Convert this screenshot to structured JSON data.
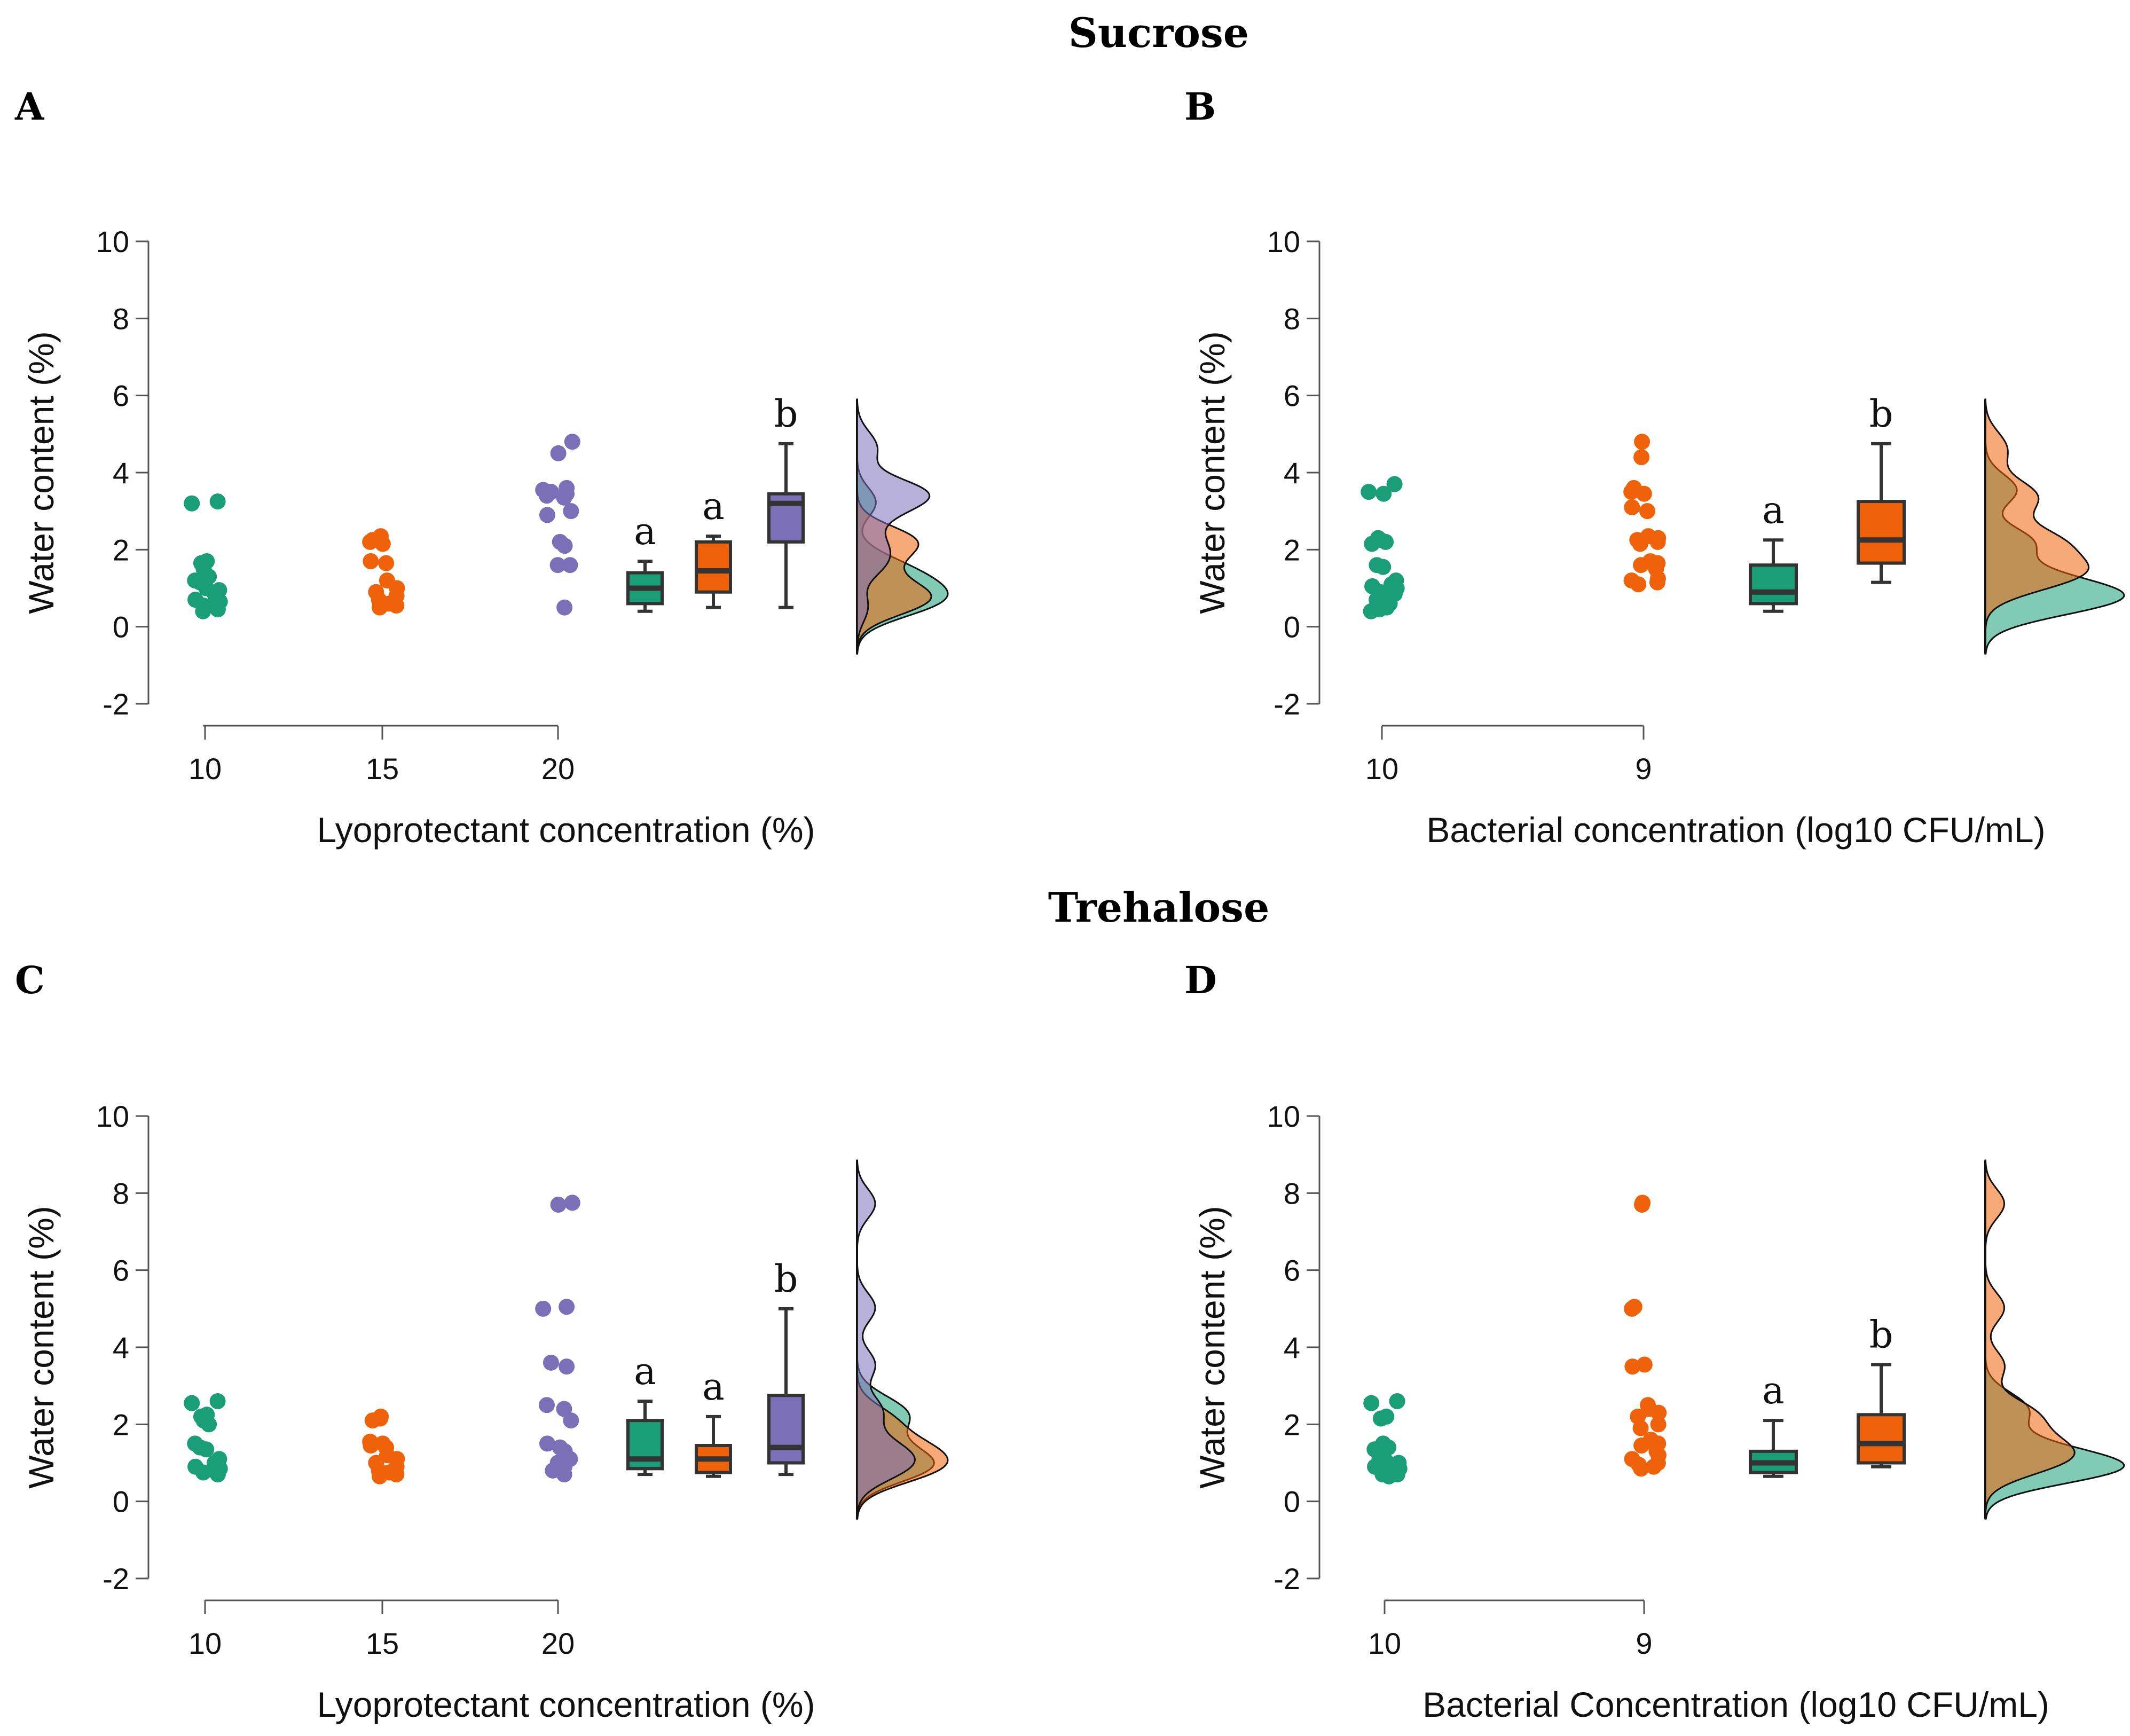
{
  "chart_data": [
    {
      "panel": "A",
      "section_title": "Sucrose",
      "type": "raincloud",
      "xlabel": "Lyoprotectant concentration (%)",
      "ylabel": "Water content (%)",
      "ylim": [
        -2,
        10
      ],
      "yticks": [
        "-2",
        "0",
        "2",
        "4",
        "6",
        "8",
        "10"
      ],
      "groups": [
        {
          "label": "10",
          "color": "#1a9e77",
          "points": [
            3.25,
            3.2,
            1.7,
            1.65,
            1.5,
            1.3,
            1.2,
            1.15,
            1.0,
            0.95,
            0.85,
            0.7,
            0.65,
            0.6,
            0.55,
            0.45,
            0.4
          ],
          "box": {
            "min": 0.4,
            "q1": 0.6,
            "median": 1.0,
            "q3": 1.4,
            "max": 1.7
          },
          "sig": "a"
        },
        {
          "label": "15",
          "color": "#f0620a",
          "points": [
            2.35,
            2.3,
            2.25,
            2.2,
            2.15,
            1.7,
            1.65,
            1.2,
            1.0,
            0.9,
            0.8,
            0.7,
            0.6,
            0.55,
            0.5
          ],
          "box": {
            "min": 0.5,
            "q1": 0.9,
            "median": 1.45,
            "q3": 2.2,
            "max": 2.35
          },
          "sig": "a"
        },
        {
          "label": "20",
          "color": "#7b70b8",
          "points": [
            4.8,
            4.5,
            3.6,
            3.55,
            3.5,
            3.45,
            3.4,
            3.35,
            3.0,
            2.9,
            2.2,
            2.1,
            1.6,
            1.6,
            0.5
          ],
          "box": {
            "min": 0.5,
            "q1": 2.2,
            "median": 3.2,
            "q3": 3.45,
            "max": 4.75
          },
          "sig": "b"
        }
      ]
    },
    {
      "panel": "B",
      "type": "raincloud",
      "xlabel": "Bacterial concentration (log10 CFU/mL)",
      "ylabel": "Water content (%)",
      "ylim": [
        -2,
        10
      ],
      "yticks": [
        "-2",
        "0",
        "2",
        "4",
        "6",
        "8",
        "10"
      ],
      "groups": [
        {
          "label": "10",
          "color": "#1a9e77",
          "points": [
            3.7,
            3.5,
            3.45,
            2.3,
            2.25,
            2.2,
            2.15,
            1.6,
            1.55,
            1.2,
            1.1,
            1.05,
            1.0,
            0.95,
            0.9,
            0.85,
            0.8,
            0.75,
            0.7,
            0.6,
            0.55,
            0.5,
            0.45,
            0.4
          ],
          "box": {
            "min": 0.4,
            "q1": 0.6,
            "median": 0.9,
            "q3": 1.6,
            "max": 2.25
          },
          "sig": "a"
        },
        {
          "label": "9",
          "color": "#f0620a",
          "points": [
            4.8,
            4.4,
            3.6,
            3.5,
            3.45,
            3.1,
            3.0,
            2.35,
            2.3,
            2.25,
            2.2,
            2.15,
            1.7,
            1.65,
            1.6,
            1.55,
            1.5,
            1.25,
            1.2,
            1.15,
            1.1
          ],
          "box": {
            "min": 1.15,
            "q1": 1.65,
            "median": 2.25,
            "q3": 3.25,
            "max": 4.75
          },
          "sig": "b"
        }
      ]
    },
    {
      "panel": "C",
      "section_title": "Trehalose",
      "type": "raincloud",
      "xlabel": "Lyoprotectant concentration (%)",
      "ylabel": "Water content (%)",
      "ylim": [
        -2,
        10
      ],
      "yticks": [
        "-2",
        "0",
        "2",
        "4",
        "6",
        "8",
        "10"
      ],
      "groups": [
        {
          "label": "10",
          "color": "#1a9e77",
          "points": [
            2.6,
            2.55,
            2.25,
            2.2,
            2.1,
            2.0,
            1.5,
            1.4,
            1.35,
            1.1,
            1.0,
            0.9,
            0.85,
            0.8,
            0.75,
            0.7
          ],
          "box": {
            "min": 0.7,
            "q1": 0.85,
            "median": 1.1,
            "q3": 2.1,
            "max": 2.6
          },
          "sig": "a"
        },
        {
          "label": "15",
          "color": "#f0620a",
          "points": [
            2.2,
            2.15,
            2.1,
            1.55,
            1.5,
            1.45,
            1.4,
            1.2,
            1.1,
            1.0,
            0.9,
            0.8,
            0.75,
            0.7,
            0.65
          ],
          "box": {
            "min": 0.65,
            "q1": 0.75,
            "median": 1.1,
            "q3": 1.45,
            "max": 2.2
          },
          "sig": "a"
        },
        {
          "label": "20",
          "color": "#7b70b8",
          "points": [
            7.75,
            7.7,
            5.05,
            5.0,
            3.6,
            3.5,
            2.5,
            2.4,
            2.1,
            1.5,
            1.4,
            1.3,
            1.1,
            1.0,
            0.9,
            0.8,
            0.7
          ],
          "box": {
            "min": 0.7,
            "q1": 1.0,
            "median": 1.4,
            "q3": 2.75,
            "max": 5.0
          },
          "sig": "b"
        }
      ]
    },
    {
      "panel": "D",
      "type": "raincloud",
      "xlabel": "Bacterial Concentration (log10 CFU/mL)",
      "ylabel": "Water content (%)",
      "ylim": [
        -2,
        10
      ],
      "yticks": [
        "-2",
        "0",
        "2",
        "4",
        "6",
        "8",
        "10"
      ],
      "groups": [
        {
          "label": "10",
          "color": "#1a9e77",
          "points": [
            2.6,
            2.55,
            2.2,
            2.15,
            1.5,
            1.4,
            1.35,
            1.1,
            1.05,
            1.0,
            0.95,
            0.9,
            0.85,
            0.8,
            0.75,
            0.7,
            0.7,
            0.65
          ],
          "box": {
            "min": 0.65,
            "q1": 0.75,
            "median": 1.0,
            "q3": 1.3,
            "max": 2.1
          },
          "sig": "a"
        },
        {
          "label": "9",
          "color": "#f0620a",
          "points": [
            7.75,
            7.7,
            5.05,
            5.0,
            3.55,
            3.5,
            2.5,
            2.4,
            2.3,
            2.2,
            2.0,
            1.9,
            1.6,
            1.5,
            1.45,
            1.4,
            1.3,
            1.2,
            1.1,
            1.0,
            0.95,
            0.9,
            0.85
          ],
          "box": {
            "min": 0.9,
            "q1": 1.0,
            "median": 1.5,
            "q3": 2.25,
            "max": 3.55
          },
          "sig": "b"
        }
      ]
    }
  ]
}
